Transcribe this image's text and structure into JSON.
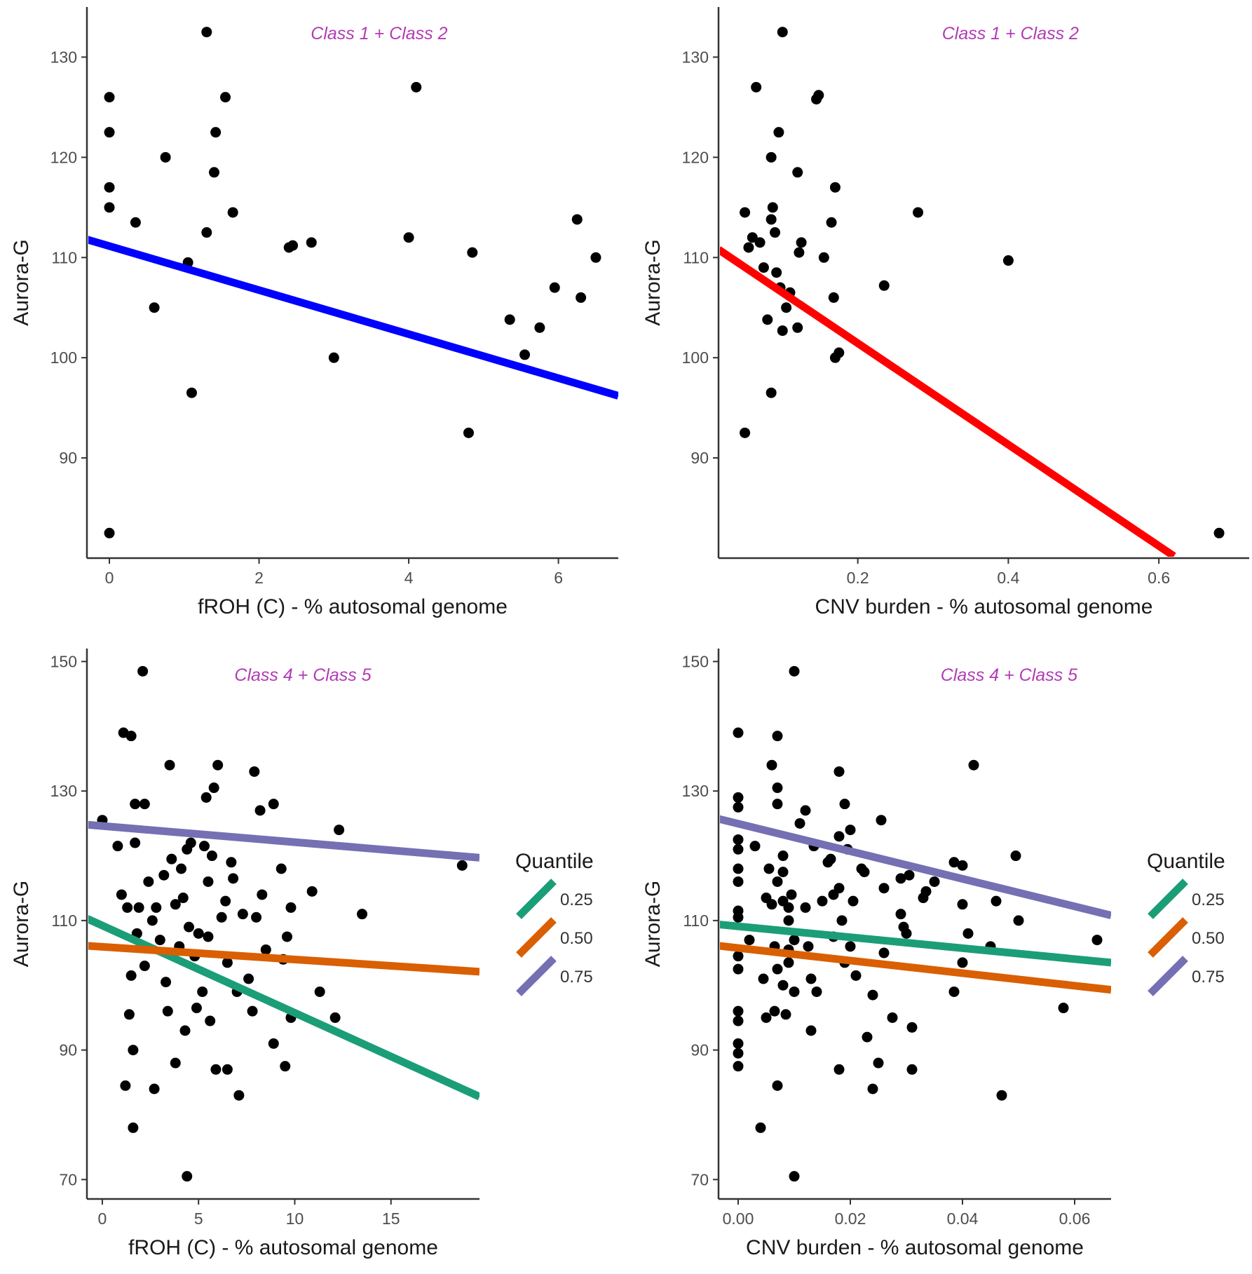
{
  "chart_data": [
    {
      "type": "scatter",
      "title": "Class 1 + Class 2",
      "xlabel": "fROH (C) - % autosomal genome",
      "ylabel": "Aurora-G",
      "xlim": [
        -0.3,
        6.8
      ],
      "ylim": [
        80,
        135
      ],
      "xticks": [
        0,
        2,
        4,
        6
      ],
      "yticks": [
        90,
        100,
        110,
        120,
        130
      ],
      "points": [
        {
          "x": 0,
          "y": 126
        },
        {
          "x": 0,
          "y": 122.5
        },
        {
          "x": 0,
          "y": 117
        },
        {
          "x": 0,
          "y": 115
        },
        {
          "x": 0,
          "y": 82.5
        },
        {
          "x": 0.35,
          "y": 113.5
        },
        {
          "x": 0.6,
          "y": 105
        },
        {
          "x": 0.75,
          "y": 120
        },
        {
          "x": 1.05,
          "y": 109.5
        },
        {
          "x": 1.1,
          "y": 96.5
        },
        {
          "x": 1.3,
          "y": 132.5
        },
        {
          "x": 1.3,
          "y": 112.5
        },
        {
          "x": 1.4,
          "y": 118.5
        },
        {
          "x": 1.42,
          "y": 122.5
        },
        {
          "x": 1.55,
          "y": 126
        },
        {
          "x": 1.65,
          "y": 114.5
        },
        {
          "x": 2.4,
          "y": 111
        },
        {
          "x": 2.45,
          "y": 111.2
        },
        {
          "x": 2.7,
          "y": 111.5
        },
        {
          "x": 3.0,
          "y": 100
        },
        {
          "x": 4.0,
          "y": 112
        },
        {
          "x": 4.1,
          "y": 127
        },
        {
          "x": 4.8,
          "y": 92.5
        },
        {
          "x": 4.85,
          "y": 110.5
        },
        {
          "x": 5.35,
          "y": 103.8
        },
        {
          "x": 5.55,
          "y": 100.3
        },
        {
          "x": 5.75,
          "y": 103
        },
        {
          "x": 5.95,
          "y": 107
        },
        {
          "x": 6.25,
          "y": 113.8
        },
        {
          "x": 6.3,
          "y": 106
        },
        {
          "x": 6.5,
          "y": 110
        }
      ],
      "lines": [
        {
          "name": "fit",
          "color": "#0000ff",
          "x": [
            -0.3,
            6.8
          ],
          "y": [
            111.8,
            96.2
          ]
        }
      ]
    },
    {
      "type": "scatter",
      "title": "Class 1 + Class 2",
      "xlabel": "CNV burden - % autosomal genome",
      "ylabel": "Aurora-G",
      "xlim": [
        0.015,
        0.72
      ],
      "ylim": [
        80,
        135
      ],
      "xticks": [
        0.2,
        0.4,
        0.6
      ],
      "xtick_labels": [
        "0.2",
        "0.4",
        "0.6"
      ],
      "yticks": [
        90,
        100,
        110,
        120,
        130
      ],
      "points": [
        {
          "x": 0.05,
          "y": 114.5
        },
        {
          "x": 0.055,
          "y": 111
        },
        {
          "x": 0.06,
          "y": 112
        },
        {
          "x": 0.065,
          "y": 127
        },
        {
          "x": 0.07,
          "y": 111.5
        },
        {
          "x": 0.075,
          "y": 109
        },
        {
          "x": 0.08,
          "y": 103.8
        },
        {
          "x": 0.085,
          "y": 120
        },
        {
          "x": 0.085,
          "y": 96.5
        },
        {
          "x": 0.085,
          "y": 113.8
        },
        {
          "x": 0.087,
          "y": 115
        },
        {
          "x": 0.09,
          "y": 112.5
        },
        {
          "x": 0.092,
          "y": 108.5
        },
        {
          "x": 0.095,
          "y": 122.5
        },
        {
          "x": 0.097,
          "y": 107
        },
        {
          "x": 0.1,
          "y": 132.5
        },
        {
          "x": 0.1,
          "y": 102.7
        },
        {
          "x": 0.105,
          "y": 105
        },
        {
          "x": 0.11,
          "y": 106.5
        },
        {
          "x": 0.12,
          "y": 118.5
        },
        {
          "x": 0.12,
          "y": 103
        },
        {
          "x": 0.122,
          "y": 110.5
        },
        {
          "x": 0.125,
          "y": 111.5
        },
        {
          "x": 0.145,
          "y": 125.8
        },
        {
          "x": 0.148,
          "y": 126.2
        },
        {
          "x": 0.155,
          "y": 110
        },
        {
          "x": 0.165,
          "y": 113.5
        },
        {
          "x": 0.168,
          "y": 106
        },
        {
          "x": 0.17,
          "y": 117
        },
        {
          "x": 0.17,
          "y": 100
        },
        {
          "x": 0.175,
          "y": 100.5
        },
        {
          "x": 0.235,
          "y": 107.2
        },
        {
          "x": 0.28,
          "y": 114.5
        },
        {
          "x": 0.05,
          "y": 92.5
        },
        {
          "x": 0.4,
          "y": 109.7
        },
        {
          "x": 0.68,
          "y": 82.5
        }
      ],
      "lines": [
        {
          "name": "fit",
          "color": "#ff0000",
          "x": [
            0.015,
            0.62
          ],
          "y": [
            110.8,
            80.2
          ]
        }
      ]
    },
    {
      "type": "scatter",
      "title": "Class 4 + Class 5",
      "xlabel": "fROH (C) - % autosomal genome",
      "ylabel": "Aurora-G",
      "xlim": [
        -0.8,
        19.6
      ],
      "ylim": [
        67,
        152
      ],
      "xticks": [
        0,
        5,
        10,
        15
      ],
      "yticks": [
        70,
        90,
        110,
        130,
        150
      ],
      "legend": {
        "title": "Quantile",
        "entries": [
          "0.25",
          "0.50",
          "0.75"
        ]
      },
      "points": [
        {
          "x": 0,
          "y": 125.5
        },
        {
          "x": 0.8,
          "y": 121.5
        },
        {
          "x": 1,
          "y": 114
        },
        {
          "x": 1.1,
          "y": 139
        },
        {
          "x": 1.2,
          "y": 84.5
        },
        {
          "x": 1.3,
          "y": 112
        },
        {
          "x": 1.4,
          "y": 95.5
        },
        {
          "x": 1.5,
          "y": 101.5
        },
        {
          "x": 1.5,
          "y": 138.5
        },
        {
          "x": 1.6,
          "y": 78
        },
        {
          "x": 1.6,
          "y": 90
        },
        {
          "x": 1.7,
          "y": 128
        },
        {
          "x": 1.7,
          "y": 122
        },
        {
          "x": 1.8,
          "y": 108
        },
        {
          "x": 1.9,
          "y": 112
        },
        {
          "x": 2.1,
          "y": 148.5
        },
        {
          "x": 2.2,
          "y": 128
        },
        {
          "x": 2.2,
          "y": 103
        },
        {
          "x": 2.4,
          "y": 116
        },
        {
          "x": 2.6,
          "y": 110
        },
        {
          "x": 2.7,
          "y": 84
        },
        {
          "x": 2.8,
          "y": 112
        },
        {
          "x": 3,
          "y": 107
        },
        {
          "x": 3.2,
          "y": 117
        },
        {
          "x": 3.3,
          "y": 100.5
        },
        {
          "x": 3.4,
          "y": 96
        },
        {
          "x": 3.5,
          "y": 134
        },
        {
          "x": 3.6,
          "y": 119.5
        },
        {
          "x": 3.8,
          "y": 112.5
        },
        {
          "x": 3.8,
          "y": 88
        },
        {
          "x": 4,
          "y": 106
        },
        {
          "x": 4.1,
          "y": 118
        },
        {
          "x": 4.2,
          "y": 113.5
        },
        {
          "x": 4.3,
          "y": 93
        },
        {
          "x": 4.4,
          "y": 121
        },
        {
          "x": 4.4,
          "y": 70.5
        },
        {
          "x": 4.5,
          "y": 109
        },
        {
          "x": 4.6,
          "y": 122
        },
        {
          "x": 4.8,
          "y": 104.5
        },
        {
          "x": 4.9,
          "y": 96.5
        },
        {
          "x": 5,
          "y": 108
        },
        {
          "x": 5.2,
          "y": 99
        },
        {
          "x": 5.3,
          "y": 121.5
        },
        {
          "x": 5.4,
          "y": 129
        },
        {
          "x": 5.5,
          "y": 116
        },
        {
          "x": 5.5,
          "y": 107.5
        },
        {
          "x": 5.6,
          "y": 94.5
        },
        {
          "x": 5.7,
          "y": 120
        },
        {
          "x": 5.8,
          "y": 130.5
        },
        {
          "x": 5.9,
          "y": 87
        },
        {
          "x": 6,
          "y": 134
        },
        {
          "x": 6.2,
          "y": 110.5
        },
        {
          "x": 6.4,
          "y": 113
        },
        {
          "x": 6.5,
          "y": 103.5
        },
        {
          "x": 6.5,
          "y": 87
        },
        {
          "x": 6.7,
          "y": 119
        },
        {
          "x": 6.8,
          "y": 116.5
        },
        {
          "x": 7,
          "y": 99
        },
        {
          "x": 7.1,
          "y": 83
        },
        {
          "x": 7.3,
          "y": 111
        },
        {
          "x": 7.6,
          "y": 101
        },
        {
          "x": 7.8,
          "y": 96
        },
        {
          "x": 7.9,
          "y": 133
        },
        {
          "x": 8,
          "y": 110.5
        },
        {
          "x": 8.2,
          "y": 127
        },
        {
          "x": 8.3,
          "y": 114
        },
        {
          "x": 8.5,
          "y": 105.5
        },
        {
          "x": 8.9,
          "y": 128
        },
        {
          "x": 8.9,
          "y": 91
        },
        {
          "x": 9.3,
          "y": 118
        },
        {
          "x": 9.4,
          "y": 104
        },
        {
          "x": 9.5,
          "y": 87.5
        },
        {
          "x": 9.6,
          "y": 107.5
        },
        {
          "x": 9.8,
          "y": 95
        },
        {
          "x": 9.8,
          "y": 112
        },
        {
          "x": 10.9,
          "y": 114.5
        },
        {
          "x": 11.3,
          "y": 99
        },
        {
          "x": 12.1,
          "y": 95
        },
        {
          "x": 12.3,
          "y": 124
        },
        {
          "x": 13.5,
          "y": 111
        },
        {
          "x": 18.7,
          "y": 118.5
        }
      ],
      "lines": [
        {
          "name": "0.25",
          "color": "#1b9e77",
          "x": [
            -0.8,
            19.6
          ],
          "y": [
            110.3,
            82.8
          ]
        },
        {
          "name": "0.50",
          "color": "#d95f02",
          "x": [
            -0.8,
            19.6
          ],
          "y": [
            106.1,
            102.1
          ]
        },
        {
          "name": "0.75",
          "color": "#7570b3",
          "x": [
            -0.8,
            19.6
          ],
          "y": [
            124.8,
            119.7
          ]
        }
      ]
    },
    {
      "type": "scatter",
      "title": "Class 4 + Class 5",
      "xlabel": "CNV burden - % autosomal genome",
      "ylabel": "Aurora-G",
      "xlim": [
        -0.0035,
        0.0665
      ],
      "ylim": [
        67,
        152
      ],
      "xticks": [
        0,
        0.02,
        0.04,
        0.06
      ],
      "xtick_labels": [
        "0.00",
        "0.02",
        "0.04",
        "0.06"
      ],
      "yticks": [
        70,
        90,
        110,
        130,
        150
      ],
      "legend": {
        "title": "Quantile",
        "entries": [
          "0.25",
          "0.50",
          "0.75"
        ]
      },
      "points": [
        {
          "x": 0,
          "y": 139
        },
        {
          "x": 0,
          "y": 129
        },
        {
          "x": 0,
          "y": 127.5
        },
        {
          "x": 0,
          "y": 122.5
        },
        {
          "x": 0,
          "y": 121
        },
        {
          "x": 0,
          "y": 118
        },
        {
          "x": 0,
          "y": 116
        },
        {
          "x": 0,
          "y": 111.5
        },
        {
          "x": 0,
          "y": 110.5
        },
        {
          "x": 0,
          "y": 104.5
        },
        {
          "x": 0,
          "y": 102.5
        },
        {
          "x": 0,
          "y": 96
        },
        {
          "x": 0,
          "y": 94.5
        },
        {
          "x": 0,
          "y": 91
        },
        {
          "x": 0,
          "y": 89.5
        },
        {
          "x": 0,
          "y": 87.5
        },
        {
          "x": 0.002,
          "y": 107
        },
        {
          "x": 0.003,
          "y": 121.5
        },
        {
          "x": 0.004,
          "y": 78
        },
        {
          "x": 0.0045,
          "y": 101
        },
        {
          "x": 0.005,
          "y": 95
        },
        {
          "x": 0.005,
          "y": 113.5
        },
        {
          "x": 0.0055,
          "y": 118
        },
        {
          "x": 0.006,
          "y": 134
        },
        {
          "x": 0.006,
          "y": 112.5
        },
        {
          "x": 0.0065,
          "y": 106
        },
        {
          "x": 0.0065,
          "y": 96
        },
        {
          "x": 0.007,
          "y": 138.5
        },
        {
          "x": 0.007,
          "y": 130.5
        },
        {
          "x": 0.007,
          "y": 128
        },
        {
          "x": 0.007,
          "y": 116
        },
        {
          "x": 0.007,
          "y": 102.5
        },
        {
          "x": 0.007,
          "y": 84.5
        },
        {
          "x": 0.008,
          "y": 120
        },
        {
          "x": 0.008,
          "y": 117.5
        },
        {
          "x": 0.008,
          "y": 113
        },
        {
          "x": 0.008,
          "y": 100
        },
        {
          "x": 0.0085,
          "y": 95.5
        },
        {
          "x": 0.009,
          "y": 110
        },
        {
          "x": 0.009,
          "y": 105.5
        },
        {
          "x": 0.009,
          "y": 103.5
        },
        {
          "x": 0.009,
          "y": 112
        },
        {
          "x": 0.0095,
          "y": 114
        },
        {
          "x": 0.01,
          "y": 148.5
        },
        {
          "x": 0.01,
          "y": 70.5
        },
        {
          "x": 0.01,
          "y": 99
        },
        {
          "x": 0.01,
          "y": 107
        },
        {
          "x": 0.011,
          "y": 125
        },
        {
          "x": 0.012,
          "y": 127
        },
        {
          "x": 0.012,
          "y": 112
        },
        {
          "x": 0.0125,
          "y": 106
        },
        {
          "x": 0.013,
          "y": 93
        },
        {
          "x": 0.013,
          "y": 101
        },
        {
          "x": 0.0135,
          "y": 121.5
        },
        {
          "x": 0.014,
          "y": 99
        },
        {
          "x": 0.015,
          "y": 113
        },
        {
          "x": 0.016,
          "y": 119
        },
        {
          "x": 0.0165,
          "y": 119.5
        },
        {
          "x": 0.017,
          "y": 114
        },
        {
          "x": 0.017,
          "y": 107.5
        },
        {
          "x": 0.018,
          "y": 133
        },
        {
          "x": 0.018,
          "y": 123
        },
        {
          "x": 0.018,
          "y": 115
        },
        {
          "x": 0.018,
          "y": 87
        },
        {
          "x": 0.0185,
          "y": 110
        },
        {
          "x": 0.019,
          "y": 128
        },
        {
          "x": 0.019,
          "y": 103.5
        },
        {
          "x": 0.0195,
          "y": 121
        },
        {
          "x": 0.02,
          "y": 124
        },
        {
          "x": 0.02,
          "y": 106
        },
        {
          "x": 0.0205,
          "y": 113
        },
        {
          "x": 0.021,
          "y": 101.5
        },
        {
          "x": 0.022,
          "y": 118
        },
        {
          "x": 0.0225,
          "y": 117.5
        },
        {
          "x": 0.023,
          "y": 92
        },
        {
          "x": 0.024,
          "y": 84
        },
        {
          "x": 0.024,
          "y": 98.5
        },
        {
          "x": 0.025,
          "y": 88
        },
        {
          "x": 0.0255,
          "y": 125.5
        },
        {
          "x": 0.026,
          "y": 115
        },
        {
          "x": 0.026,
          "y": 105
        },
        {
          "x": 0.0275,
          "y": 95
        },
        {
          "x": 0.029,
          "y": 116.5
        },
        {
          "x": 0.029,
          "y": 111
        },
        {
          "x": 0.0295,
          "y": 109
        },
        {
          "x": 0.03,
          "y": 108
        },
        {
          "x": 0.0305,
          "y": 117
        },
        {
          "x": 0.031,
          "y": 93.5
        },
        {
          "x": 0.031,
          "y": 87
        },
        {
          "x": 0.033,
          "y": 113.5
        },
        {
          "x": 0.0335,
          "y": 114.5
        },
        {
          "x": 0.035,
          "y": 116
        },
        {
          "x": 0.0385,
          "y": 99
        },
        {
          "x": 0.0385,
          "y": 119
        },
        {
          "x": 0.04,
          "y": 118.5
        },
        {
          "x": 0.04,
          "y": 112.5
        },
        {
          "x": 0.04,
          "y": 103.5
        },
        {
          "x": 0.041,
          "y": 108
        },
        {
          "x": 0.042,
          "y": 134
        },
        {
          "x": 0.045,
          "y": 106
        },
        {
          "x": 0.046,
          "y": 113
        },
        {
          "x": 0.047,
          "y": 83
        },
        {
          "x": 0.0495,
          "y": 120
        },
        {
          "x": 0.05,
          "y": 110
        },
        {
          "x": 0.058,
          "y": 96.5
        },
        {
          "x": 0.064,
          "y": 107
        }
      ],
      "lines": [
        {
          "name": "0.25",
          "color": "#1b9e77",
          "x": [
            -0.0035,
            0.0665
          ],
          "y": [
            109.4,
            103.5
          ]
        },
        {
          "name": "0.50",
          "color": "#d95f02",
          "x": [
            -0.0035,
            0.0665
          ],
          "y": [
            106.1,
            99.3
          ]
        },
        {
          "name": "0.75",
          "color": "#7570b3",
          "x": [
            -0.0035,
            0.0665
          ],
          "y": [
            125.7,
            110.8
          ]
        }
      ]
    }
  ]
}
